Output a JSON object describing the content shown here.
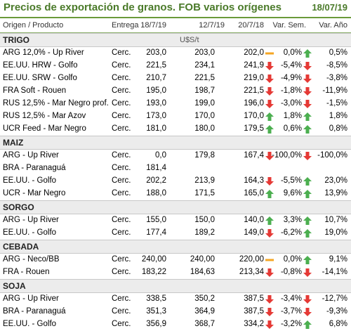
{
  "title": "Precios de exportación de granos. FOB varios orígenes",
  "date": "18/07/19",
  "headers": {
    "product": "Origen / Producto",
    "entrega": "Entrega",
    "c1": "18/7/19",
    "c2": "12/7/19",
    "c3": "20/7/18",
    "vsem": "Var. Sem.",
    "vano": "Var. Año"
  },
  "colors": {
    "up": "#4caf50",
    "down": "#e53935",
    "flat": "#f5a623",
    "accent": "#4a7a29"
  },
  "sections": [
    {
      "name": "TRIGO",
      "unit": "U$S/t",
      "rows": [
        {
          "product": "ARG 12,0% - Up River",
          "entrega": "Cerc.",
          "v1": "203,0",
          "v2": "203,0",
          "v3": "202,0",
          "ic1": "flat-dash-icon",
          "vs": "0,0%",
          "ic2": "up-arrow-icon",
          "va": "0,5%"
        },
        {
          "product": "EE.UU. HRW - Golfo",
          "entrega": "Cerc.",
          "v1": "221,5",
          "v2": "234,1",
          "v3": "241,9",
          "ic1": "down-arrow-icon",
          "vs": "-5,4%",
          "ic2": "down-arrow-icon",
          "va": "-8,5%"
        },
        {
          "product": "EE.UU. SRW - Golfo",
          "entrega": "Cerc.",
          "v1": "210,7",
          "v2": "221,5",
          "v3": "219,0",
          "ic1": "down-arrow-icon",
          "vs": "-4,9%",
          "ic2": "down-arrow-icon",
          "va": "-3,8%"
        },
        {
          "product": "FRA Soft - Rouen",
          "entrega": "Cerc.",
          "v1": "195,0",
          "v2": "198,7",
          "v3": "221,5",
          "ic1": "down-arrow-icon",
          "vs": "-1,8%",
          "ic2": "down-arrow-icon",
          "va": "-11,9%"
        },
        {
          "product": "RUS 12,5% - Mar Negro prof.",
          "entrega": "Cerc.",
          "v1": "193,0",
          "v2": "199,0",
          "v3": "196,0",
          "ic1": "down-arrow-icon",
          "vs": "-3,0%",
          "ic2": "down-arrow-icon",
          "va": "-1,5%"
        },
        {
          "product": "RUS 12,5% - Mar Azov",
          "entrega": "Cerc.",
          "v1": "173,0",
          "v2": "170,0",
          "v3": "170,0",
          "ic1": "up-arrow-icon",
          "vs": "1,8%",
          "ic2": "up-arrow-icon",
          "va": "1,8%"
        },
        {
          "product": "UCR Feed - Mar Negro",
          "entrega": "Cerc.",
          "v1": "181,0",
          "v2": "180,0",
          "v3": "179,5",
          "ic1": "up-arrow-icon",
          "vs": "0,6%",
          "ic2": "up-arrow-icon",
          "va": "0,8%"
        }
      ]
    },
    {
      "name": "MAIZ",
      "unit": "",
      "rows": [
        {
          "product": "ARG - Up River",
          "entrega": "Cerc.",
          "v1": "0,0",
          "v2": "179,8",
          "v3": "167,4",
          "ic1": "down-arrow-icon",
          "vs": "-100,0%",
          "ic2": "down-arrow-icon",
          "va": "-100,0%"
        },
        {
          "product": "BRA - Paranaguá",
          "entrega": "Cerc.",
          "v1": "181,4",
          "v2": "",
          "v3": "",
          "ic1": "",
          "vs": "",
          "ic2": "",
          "va": ""
        },
        {
          "product": "EE.UU. - Golfo",
          "entrega": "Cerc.",
          "v1": "202,2",
          "v2": "213,9",
          "v3": "164,3",
          "ic1": "down-arrow-icon",
          "vs": "-5,5%",
          "ic2": "up-arrow-icon",
          "va": "23,0%"
        },
        {
          "product": "UCR - Mar Negro",
          "entrega": "Cerc.",
          "v1": "188,0",
          "v2": "171,5",
          "v3": "165,0",
          "ic1": "up-arrow-icon",
          "vs": "9,6%",
          "ic2": "up-arrow-icon",
          "va": "13,9%"
        }
      ]
    },
    {
      "name": "SORGO",
      "unit": "",
      "rows": [
        {
          "product": "ARG - Up River",
          "entrega": "Cerc.",
          "v1": "155,0",
          "v2": "150,0",
          "v3": "140,0",
          "ic1": "up-arrow-icon",
          "vs": "3,3%",
          "ic2": "up-arrow-icon",
          "va": "10,7%"
        },
        {
          "product": "EE.UU. - Golfo",
          "entrega": "Cerc.",
          "v1": "177,4",
          "v2": "189,2",
          "v3": "149,0",
          "ic1": "down-arrow-icon",
          "vs": "-6,2%",
          "ic2": "up-arrow-icon",
          "va": "19,0%"
        }
      ]
    },
    {
      "name": "CEBADA",
      "unit": "",
      "rows": [
        {
          "product": "ARG - Neco/BB",
          "entrega": "Cerc.",
          "v1": "240,00",
          "v2": "240,00",
          "v3": "220,00",
          "ic1": "flat-dash-icon",
          "vs": "0,0%",
          "ic2": "up-arrow-icon",
          "va": "9,1%"
        },
        {
          "product": "FRA - Rouen",
          "entrega": "Cerc.",
          "v1": "183,22",
          "v2": "184,63",
          "v3": "213,34",
          "ic1": "down-arrow-icon",
          "vs": "-0,8%",
          "ic2": "down-arrow-icon",
          "va": "-14,1%"
        }
      ]
    },
    {
      "name": "SOJA",
      "unit": "",
      "rows": [
        {
          "product": "ARG - Up River",
          "entrega": "Cerc.",
          "v1": "338,5",
          "v2": "350,2",
          "v3": "387,5",
          "ic1": "down-arrow-icon",
          "vs": "-3,4%",
          "ic2": "down-arrow-icon",
          "va": "-12,7%"
        },
        {
          "product": "BRA - Paranaguá",
          "entrega": "Cerc.",
          "v1": "351,3",
          "v2": "364,9",
          "v3": "387,5",
          "ic1": "down-arrow-icon",
          "vs": "-3,7%",
          "ic2": "down-arrow-icon",
          "va": "-9,3%"
        },
        {
          "product": "EE.UU. - Golfo",
          "entrega": "Cerc.",
          "v1": "356,9",
          "v2": "368,7",
          "v3": "334,2",
          "ic1": "down-arrow-icon",
          "vs": "-3,2%",
          "ic2": "up-arrow-icon",
          "va": "6,8%"
        }
      ]
    }
  ]
}
